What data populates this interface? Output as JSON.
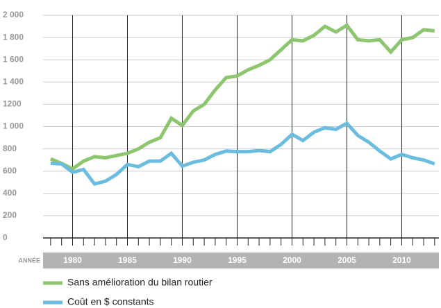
{
  "chart_data": {
    "type": "line",
    "x_label": "ANNÉE",
    "x": [
      1978,
      1979,
      1980,
      1981,
      1982,
      1983,
      1984,
      1985,
      1986,
      1987,
      1988,
      1989,
      1990,
      1991,
      1992,
      1993,
      1994,
      1995,
      1996,
      1997,
      1998,
      1999,
      2000,
      2001,
      2002,
      2003,
      2004,
      2005,
      2006,
      2007,
      2008,
      2009,
      2010,
      2011,
      2012,
      2013
    ],
    "series": [
      {
        "name": "Sans amélioration du bilan routier",
        "color": "#8dc66f",
        "values": [
          710,
          670,
          620,
          690,
          730,
          720,
          740,
          760,
          800,
          860,
          900,
          1075,
          1010,
          1140,
          1200,
          1330,
          1440,
          1455,
          1510,
          1550,
          1600,
          1690,
          1780,
          1770,
          1820,
          1900,
          1850,
          1910,
          1780,
          1770,
          1780,
          1670,
          1780,
          1800,
          1870,
          1860
        ]
      },
      {
        "name": "Coût en $ constants",
        "color": "#6bbde0",
        "values": [
          670,
          665,
          590,
          615,
          485,
          510,
          570,
          660,
          640,
          690,
          690,
          760,
          645,
          680,
          700,
          750,
          780,
          775,
          775,
          785,
          775,
          840,
          930,
          875,
          950,
          990,
          975,
          1030,
          920,
          860,
          780,
          710,
          750,
          720,
          700,
          665
        ]
      }
    ],
    "xlim": [
      1977.5,
      2013.2
    ],
    "xticks": [
      1980,
      1985,
      1990,
      1995,
      2000,
      2005,
      2010
    ],
    "ylim": [
      0,
      2000
    ],
    "yticks": [
      0,
      200,
      400,
      600,
      800,
      {
        "value": 1000,
        "label": "1 000"
      },
      {
        "value": 1200,
        "label": "1200"
      },
      {
        "value": 1400,
        "label": "1 400"
      },
      {
        "value": 1600,
        "label": "1 600"
      },
      {
        "value": 1800,
        "label": "1 800"
      },
      {
        "value": 2000,
        "label": "2 000"
      }
    ],
    "grid": true
  }
}
